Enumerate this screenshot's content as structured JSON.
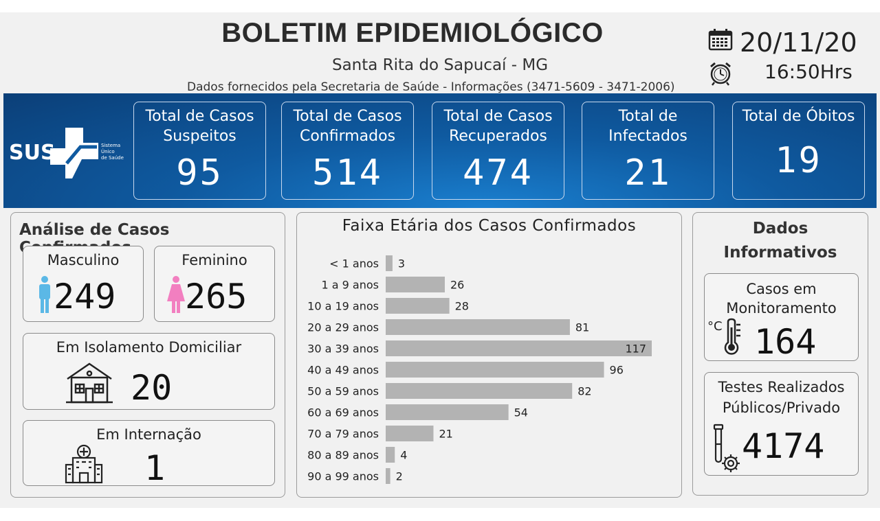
{
  "header": {
    "title": "BOLETIM EPIDEMIOLÓGICO",
    "city": "Santa Rita do Sapucaí - MG",
    "source": "Dados fornecidos pela Secretaria de Saúde - Informações (3471-5609 - 3471-2006)",
    "date": "20/11/20",
    "time": "16:50Hrs"
  },
  "logo": {
    "text": "SUS",
    "caption": [
      "Sistema",
      "Único",
      "de Saúde"
    ]
  },
  "stats": [
    {
      "label1": "Total de Casos",
      "label2": "Suspeitos",
      "value": "95"
    },
    {
      "label1": "Total de Casos",
      "label2": "Confirmados",
      "value": "514"
    },
    {
      "label1": "Total de Casos",
      "label2": "Recuperados",
      "value": "474"
    },
    {
      "label1": "Total de",
      "label2": "Infectados",
      "value": "21"
    },
    {
      "label1": "Total de Óbitos",
      "label2": "",
      "value": "19"
    }
  ],
  "analysis": {
    "title": "Análise de Casos Confirmados",
    "male_label": "Masculino",
    "male_value": "249",
    "female_label": "Feminino",
    "female_value": "265",
    "isolation_label": "Em Isolamento Domiciliar",
    "isolation_value": "20",
    "hospital_label": "Em Internação",
    "hospital_value": "1"
  },
  "info": {
    "title1": "Dados",
    "title2": "Informativos",
    "monitor_label1": "Casos em",
    "monitor_label2": "Monitoramento",
    "monitor_value": "164",
    "tests_label1": "Testes Realizados",
    "tests_label2": "Públicos/Privado",
    "tests_value": "4174"
  },
  "colors": {
    "band": "#0f5aa0",
    "bar": "#b3b3b3",
    "male": "#5bb8e6",
    "female": "#f27fc0"
  },
  "chart_data": {
    "type": "bar",
    "orientation": "horizontal",
    "title": "Faixa Etária dos Casos Confirmados",
    "categories": [
      "< 1 anos",
      "1 a 9 anos",
      "10 a 19 anos",
      "20 a 29 anos",
      "30 a 39 anos",
      "40 a 49 anos",
      "50 a 59 anos",
      "60 a 69 anos",
      "70 a 79 anos",
      "80 a 89 anos",
      "90 a 99 anos"
    ],
    "values": [
      3,
      26,
      28,
      81,
      117,
      96,
      82,
      54,
      21,
      4,
      2
    ],
    "grid": false,
    "data_labels": true
  }
}
